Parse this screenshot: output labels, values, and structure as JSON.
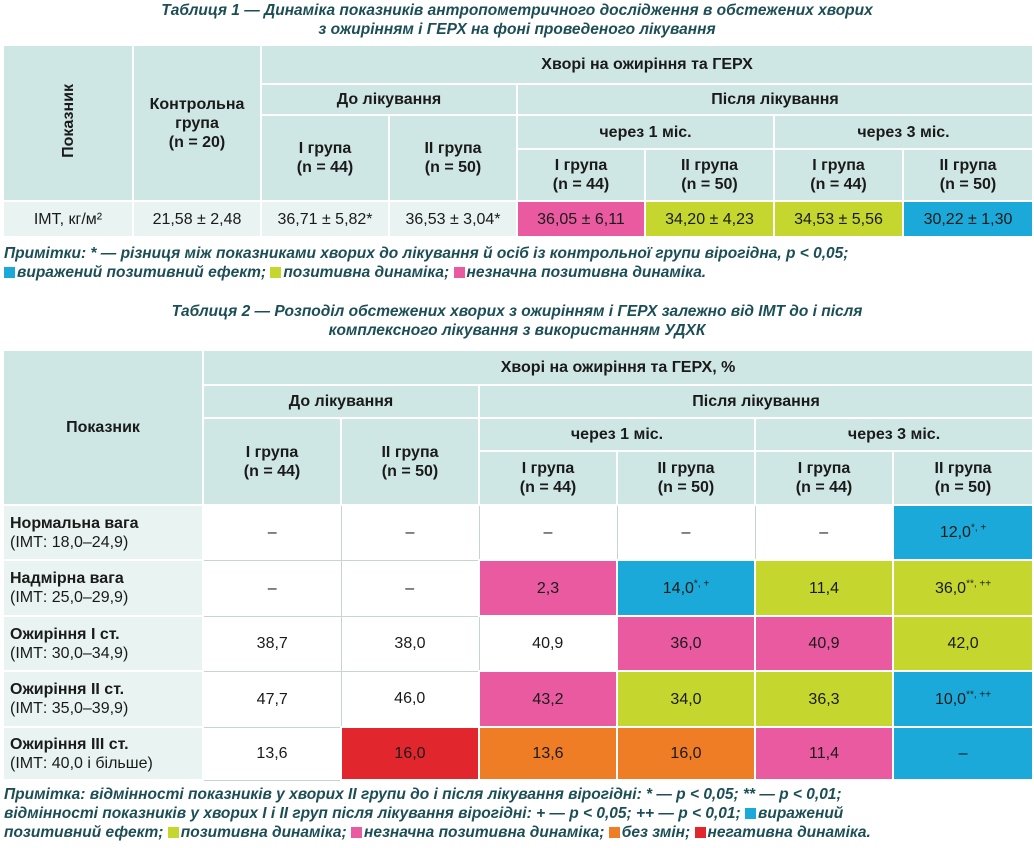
{
  "table1": {
    "caption_line1": "Таблиця 1 — Динаміка показників антропометричного дослідження в обстежених хворих",
    "caption_line2": "з ожирінням і ГЕРХ на фоні проведеного лікування",
    "header": {
      "indicator": "Показник",
      "control_line1": "Контрольна",
      "control_line2": "група",
      "control_line3": "(n = 20)",
      "patients": "Хворі на ожиріння та ГЕРХ",
      "before": "До лікування",
      "after": "Після лікування",
      "after_1m": "через 1 міс.",
      "after_3m": "через 3 міс.",
      "group1": "І група",
      "group2": "ІІ група",
      "n44": "(n = 44)",
      "n50": "(n = 50)"
    },
    "row": {
      "label": "ІМТ, кг/м²",
      "control": "21,58 ± 2,48",
      "before_g1": "36,71 ± 5,82*",
      "before_g2": "36,53 ± 3,04*",
      "m1_g1": "36,05 ± 6,11",
      "m1_g2": "34,20 ± 4,23",
      "m3_g1": "34,53 ± 5,56",
      "m3_g2": "30,22 ± 1,30"
    },
    "note_line1": "Примітки: * — різниця між показниками хворих до лікування й осіб із контрольної групи вірогідна, p < 0,05;",
    "note_legend_cyan": "виражений позитивний ефект;",
    "note_legend_lime": "позитивна динаміка;",
    "note_legend_pink": "незначна позитивна динаміка."
  },
  "table2": {
    "caption_line1": "Таблиця 2 — Розподіл обстежених хворих з ожирінням і ГЕРХ залежно від ІМТ до і після",
    "caption_line2": "комплексного лікування з використанням УДХК",
    "header": {
      "indicator": "Показник",
      "patients": "Хворі на ожиріння та ГЕРХ, %",
      "before": "До лікування",
      "after": "Після лікування",
      "after_1m": "через 1 міс.",
      "after_3m": "через 3 міс.",
      "group1": "І група",
      "group2": "ІІ група",
      "n44": "(n = 44)",
      "n50": "(n = 50)"
    },
    "rows": [
      {
        "name": "Нормальна вага",
        "range": "(ІМТ: 18,0–24,9)",
        "values": [
          "–",
          "–",
          "–",
          "–",
          "–",
          "12,0"
        ],
        "sup": [
          "",
          "",
          "",
          "",
          "",
          "*, +"
        ]
      },
      {
        "name": "Надмірна вага",
        "range": "(ІМТ: 25,0–29,9)",
        "values": [
          "–",
          "–",
          "2,3",
          "14,0",
          "11,4",
          "36,0"
        ],
        "sup": [
          "",
          "",
          "",
          "*, +",
          "",
          "**, ++"
        ]
      },
      {
        "name": "Ожиріння І ст.",
        "range": "(ІМТ: 30,0–34,9)",
        "values": [
          "38,7",
          "38,0",
          "40,9",
          "36,0",
          "40,9",
          "42,0"
        ],
        "sup": [
          "",
          "",
          "",
          "",
          "",
          ""
        ]
      },
      {
        "name": "Ожиріння ІІ ст.",
        "range": "(ІМТ: 35,0–39,9)",
        "values": [
          "47,7",
          "46,0",
          "43,2",
          "34,0",
          "36,3",
          "10,0"
        ],
        "sup": [
          "",
          "",
          "",
          "",
          "",
          "**, ++"
        ]
      },
      {
        "name": "Ожиріння ІІІ ст.",
        "range": "(ІМТ: 40,0 і більше)",
        "values": [
          "13,6",
          "16,0",
          "13,6",
          "16,0",
          "11,4",
          "–"
        ],
        "sup": [
          "",
          "",
          "",
          "",
          "",
          ""
        ]
      }
    ],
    "note_line1": "Примітка: відмінності показників у хворих ІІ групи до і після лікування вірогідні: * — p < 0,05; ** — p < 0,01;",
    "note_line2_a": "відмінності показників у хворих І і ІІ груп після лікування вірогідні:",
    "note_line2_b": "+ — p < 0,05; ++ — p < 0,01;",
    "note_legend_cyan_a": "виражений",
    "note_legend_cyan_b": "позитивний ефект;",
    "note_legend_lime": "позитивна динаміка;",
    "note_legend_pink": "незначна позитивна динаміка;",
    "note_legend_orange": "без змін;",
    "note_legend_red": "негативна динаміка."
  },
  "colors": {
    "header": "#cfe7e4",
    "light": "#e8f3f2",
    "pink": "#ea5aa1",
    "lime": "#c5d72f",
    "cyan": "#1aa9d8",
    "orange": "#ef7d26",
    "red": "#e2262e",
    "caption": "#1c4e55"
  }
}
